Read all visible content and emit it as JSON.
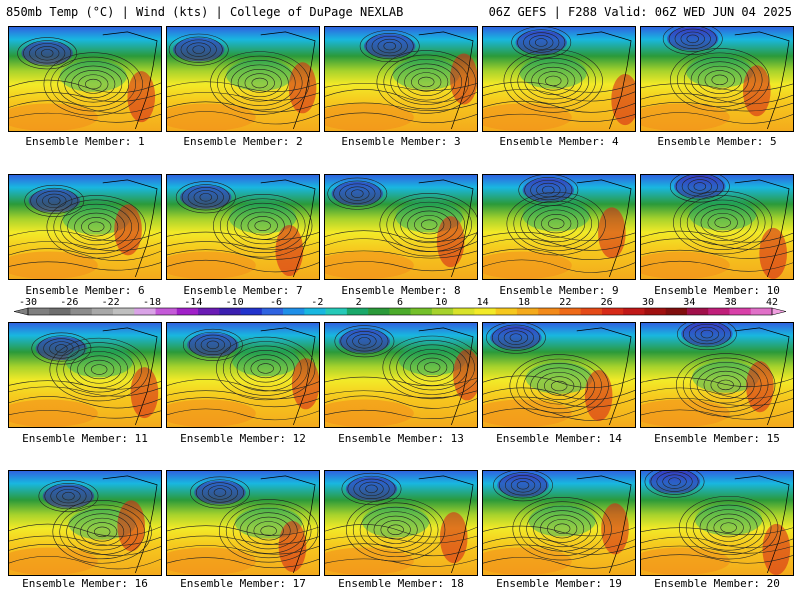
{
  "header": {
    "left_title": "850mb Temp (°C) | Wind (kts) | College of DuPage NEXLAB",
    "right_title": "06Z GEFS | F288 Valid: 06Z WED JUN 04 2025"
  },
  "members": [
    {
      "label": "Ensemble Member: 1"
    },
    {
      "label": "Ensemble Member: 2"
    },
    {
      "label": "Ensemble Member: 3"
    },
    {
      "label": "Ensemble Member: 4"
    },
    {
      "label": "Ensemble Member: 5"
    },
    {
      "label": "Ensemble Member: 6"
    },
    {
      "label": "Ensemble Member: 7"
    },
    {
      "label": "Ensemble Member: 8"
    },
    {
      "label": "Ensemble Member: 9"
    },
    {
      "label": "Ensemble Member: 10"
    },
    {
      "label": "Ensemble Member: 11"
    },
    {
      "label": "Ensemble Member: 12"
    },
    {
      "label": "Ensemble Member: 13"
    },
    {
      "label": "Ensemble Member: 14"
    },
    {
      "label": "Ensemble Member: 15"
    },
    {
      "label": "Ensemble Member: 16"
    },
    {
      "label": "Ensemble Member: 17"
    },
    {
      "label": "Ensemble Member: 18"
    },
    {
      "label": "Ensemble Member: 19"
    },
    {
      "label": "Ensemble Member: 20"
    }
  ],
  "colorbar": {
    "labels": [
      "-30",
      "-26",
      "-22",
      "-18",
      "-14",
      "-10",
      "-6",
      "-2",
      "2",
      "6",
      "10",
      "14",
      "18",
      "22",
      "26",
      "30",
      "34",
      "38",
      "42"
    ],
    "colors": [
      "#7f7f7f",
      "#6e6e6e",
      "#8c8c8c",
      "#a8a8a8",
      "#bfbfbf",
      "#d9a3e6",
      "#c45ad8",
      "#a020c8",
      "#6a1bb4",
      "#3b1fb0",
      "#2233cc",
      "#2f63e0",
      "#1f8fe8",
      "#19b7e0",
      "#26c9b8",
      "#1aa86a",
      "#2b9a3a",
      "#4cab2b",
      "#74c02a",
      "#a6d22c",
      "#d8e22a",
      "#f2ea28",
      "#f6c81e",
      "#f4aa1c",
      "#f28a1a",
      "#ee6a18",
      "#e44a18",
      "#d62a18",
      "#c01818",
      "#a01010",
      "#800e0e",
      "#a0104a",
      "#c01f7a",
      "#d840a8",
      "#e070c8"
    ]
  }
}
